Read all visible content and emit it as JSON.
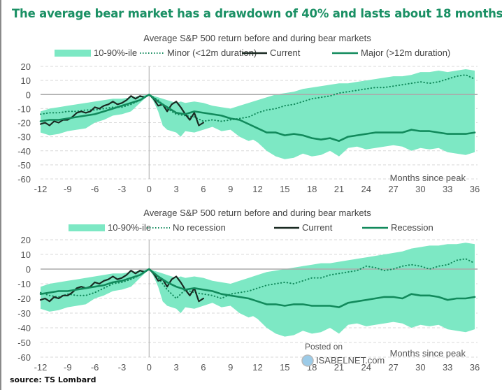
{
  "title": "The average bear market has a drawdown of 40% and lasts about 18 months",
  "source": "source: TS Lombard",
  "watermark": {
    "line1": "Posted on",
    "line2": "ISABELNET.com"
  },
  "colors": {
    "band": "#7de8c4",
    "dark": "#1a2a22",
    "green": "#128a5c",
    "title": "#1a9064",
    "grid": "#d9d9d9",
    "zero": "#aaaaaa"
  },
  "chart_data": [
    {
      "type": "line",
      "title": "Average S&P 500 return before and during bear markets",
      "xlabel": "Months since peak",
      "ylabel": "",
      "xlim": [
        -12,
        36
      ],
      "ylim": [
        -60,
        20
      ],
      "xticks": [
        -12,
        -9,
        -6,
        -3,
        0,
        3,
        6,
        9,
        12,
        15,
        18,
        21,
        24,
        27,
        30,
        33,
        36
      ],
      "yticks": [
        20,
        10,
        0,
        -10,
        -20,
        -30,
        -40,
        -50,
        -60
      ],
      "grid": true,
      "legend": [
        {
          "label": "10-90%-ile",
          "kind": "band"
        },
        {
          "label": "Minor (<12m duration)",
          "kind": "dotted"
        },
        {
          "label": "Current",
          "kind": "dark"
        },
        {
          "label": "Major (>12m duration)",
          "kind": "green"
        }
      ],
      "legend_placement": "top",
      "band": {
        "x": [
          -12,
          -11,
          -10,
          -9,
          -8,
          -7,
          -6,
          -5,
          -4,
          -3,
          -2,
          -1,
          0,
          0.5,
          1,
          1.5,
          2,
          3,
          3.5,
          4,
          5,
          6,
          7,
          8,
          9,
          10,
          11,
          11.5,
          12,
          13,
          14,
          15,
          16,
          17,
          18,
          19,
          20,
          21,
          22,
          23,
          24,
          25,
          26,
          27,
          28,
          29,
          30,
          31,
          32,
          33,
          34,
          35,
          36
        ],
        "upper": [
          -12,
          -10,
          -9,
          -8,
          -7,
          -6,
          -5,
          -4,
          -3,
          -3,
          -2,
          -1,
          0,
          -1,
          -2,
          -3,
          -4,
          -6,
          -5,
          -6,
          -5,
          -6,
          -8,
          -9,
          -10,
          -8,
          -6,
          -5,
          -4,
          -2,
          0,
          1,
          2,
          4,
          5,
          6,
          7,
          8,
          8,
          9,
          10,
          11,
          12,
          13,
          13,
          14,
          16,
          16,
          17,
          16,
          17,
          18,
          17
        ],
        "lower": [
          -27,
          -29,
          -28,
          -26,
          -25,
          -24,
          -20,
          -18,
          -15,
          -14,
          -12,
          -6,
          0,
          -5,
          -12,
          -22,
          -25,
          -27,
          -30,
          -26,
          -27,
          -25,
          -23,
          -26,
          -25,
          -30,
          -33,
          -32,
          -34,
          -40,
          -44,
          -46,
          -45,
          -42,
          -44,
          -43,
          -40,
          -44,
          -38,
          -37,
          -39,
          -38,
          -37,
          -36,
          -37,
          -40,
          -38,
          -39,
          -38,
          -41,
          -42,
          -43,
          -41
        ]
      },
      "series": [
        {
          "name": "Minor (<12m duration)",
          "style": "dotted",
          "x": [
            -12,
            -11,
            -10,
            -9,
            -8,
            -7,
            -6,
            -5,
            -4,
            -3,
            -2,
            -1,
            0,
            1,
            2,
            3,
            4,
            5,
            6,
            7,
            8,
            9,
            10,
            11,
            12,
            13,
            14,
            15,
            16,
            17,
            18,
            19,
            20,
            21,
            22,
            23,
            24,
            25,
            26,
            27,
            28,
            29,
            30,
            31,
            32,
            33,
            34,
            35,
            36
          ],
          "y": [
            -14,
            -13,
            -13,
            -12,
            -12,
            -11,
            -11,
            -10,
            -9,
            -9,
            -7,
            -4,
            0,
            -4,
            -10,
            -14,
            -15,
            -16,
            -19,
            -18,
            -19,
            -18,
            -17,
            -16,
            -13,
            -11,
            -10,
            -8,
            -7,
            -5,
            -3,
            -2,
            -1,
            1,
            2,
            3,
            4,
            5,
            5,
            6,
            7,
            8,
            9,
            8,
            9,
            11,
            13,
            14,
            11
          ]
        },
        {
          "name": "Current",
          "style": "dark",
          "x": [
            -12,
            -11.5,
            -11,
            -10.5,
            -10,
            -9.5,
            -9,
            -8.5,
            -8,
            -7.5,
            -7,
            -6.5,
            -6,
            -5.5,
            -5,
            -4.5,
            -4,
            -3.5,
            -3,
            -2.5,
            -2,
            -1.5,
            -1,
            -0.5,
            0,
            0.5,
            1,
            1.5,
            2,
            2.5,
            3,
            3.5,
            4,
            4.5,
            5,
            5.5,
            6
          ],
          "y": [
            -21,
            -20,
            -22,
            -19,
            -20,
            -18,
            -18,
            -16,
            -13,
            -12,
            -13,
            -12,
            -9,
            -10,
            -8,
            -7,
            -5,
            -7,
            -6,
            -4,
            -1,
            -3,
            -1,
            -2,
            0,
            -3,
            -8,
            -7,
            -12,
            -7,
            -5,
            -9,
            -14,
            -18,
            -13,
            -22,
            -20
          ]
        },
        {
          "name": "Major (>12m duration)",
          "style": "green",
          "x": [
            -12,
            -11,
            -10,
            -9,
            -8,
            -7,
            -6,
            -5,
            -4,
            -3,
            -2,
            -1,
            0,
            1,
            2,
            3,
            4,
            5,
            6,
            7,
            8,
            9,
            10,
            11,
            12,
            13,
            14,
            15,
            16,
            17,
            18,
            19,
            20,
            21,
            22,
            23,
            24,
            25,
            26,
            27,
            28,
            29,
            30,
            31,
            32,
            33,
            34,
            35,
            36
          ],
          "y": [
            -19,
            -18,
            -18,
            -17,
            -16,
            -15,
            -14,
            -12,
            -10,
            -8,
            -6,
            -4,
            0,
            -5,
            -9,
            -13,
            -14,
            -12,
            -13,
            -14,
            -15,
            -17,
            -18,
            -21,
            -24,
            -27,
            -27,
            -29,
            -28,
            -29,
            -31,
            -32,
            -31,
            -33,
            -30,
            -29,
            -28,
            -27,
            -27,
            -27,
            -27,
            -25,
            -26,
            -26,
            -27,
            -28,
            -28,
            -28,
            -27
          ]
        }
      ]
    },
    {
      "type": "line",
      "title": "Average S&P 500 return before and during bear markets",
      "xlabel": "Months since peak",
      "ylabel": "",
      "xlim": [
        -12,
        36
      ],
      "ylim": [
        -60,
        20
      ],
      "xticks": [
        -12,
        -9,
        -6,
        -3,
        0,
        3,
        6,
        9,
        12,
        15,
        18,
        21,
        24,
        27,
        30,
        33,
        36
      ],
      "yticks": [
        20,
        10,
        0,
        -10,
        -20,
        -30,
        -40,
        -50,
        -60
      ],
      "grid": true,
      "legend": [
        {
          "label": "10-90%-ile",
          "kind": "band"
        },
        {
          "label": "No recession",
          "kind": "dotted"
        },
        {
          "label": "Current",
          "kind": "dark"
        },
        {
          "label": "Recession",
          "kind": "green"
        }
      ],
      "legend_placement": "top",
      "band": {
        "x": [
          -12,
          -11,
          -10,
          -9,
          -8,
          -7,
          -6,
          -5,
          -4,
          -3,
          -2,
          -1,
          0,
          0.5,
          1,
          1.5,
          2,
          3,
          3.5,
          4,
          5,
          6,
          7,
          8,
          9,
          10,
          11,
          11.5,
          12,
          13,
          14,
          15,
          16,
          17,
          18,
          19,
          20,
          21,
          22,
          23,
          24,
          25,
          26,
          27,
          28,
          29,
          30,
          31,
          32,
          33,
          34,
          35,
          36
        ],
        "upper": [
          -12,
          -10,
          -9,
          -8,
          -7,
          -6,
          -5,
          -4,
          -3,
          -3,
          -2,
          -1,
          0,
          -1,
          -2,
          -3,
          -4,
          -6,
          -5,
          -6,
          -5,
          -6,
          -8,
          -9,
          -10,
          -8,
          -6,
          -5,
          -4,
          -2,
          -1,
          0,
          1,
          2,
          3,
          4,
          4,
          5,
          6,
          7,
          8,
          9,
          10,
          11,
          12,
          14,
          15,
          16,
          16,
          17,
          17,
          18,
          17
        ],
        "lower": [
          -27,
          -29,
          -28,
          -26,
          -25,
          -24,
          -20,
          -18,
          -15,
          -14,
          -12,
          -6,
          0,
          -5,
          -12,
          -22,
          -25,
          -27,
          -30,
          -26,
          -27,
          -25,
          -23,
          -26,
          -25,
          -30,
          -33,
          -32,
          -34,
          -40,
          -44,
          -46,
          -45,
          -42,
          -44,
          -43,
          -40,
          -44,
          -38,
          -37,
          -39,
          -38,
          -37,
          -36,
          -37,
          -40,
          -38,
          -39,
          -38,
          -41,
          -42,
          -43,
          -41
        ]
      },
      "series": [
        {
          "name": "No recession",
          "style": "dotted",
          "x": [
            -12,
            -11,
            -10,
            -9,
            -8,
            -7,
            -6,
            -5,
            -4,
            -3,
            -2,
            -1,
            0,
            1,
            2,
            3,
            4,
            5,
            6,
            7,
            8,
            9,
            10,
            11,
            12,
            13,
            14,
            15,
            16,
            17,
            18,
            19,
            20,
            21,
            22,
            23,
            24,
            25,
            26,
            27,
            28,
            29,
            30,
            31,
            32,
            33,
            34,
            35,
            36
          ],
          "y": [
            -16,
            -18,
            -19,
            -17,
            -18,
            -18,
            -16,
            -13,
            -10,
            -9,
            -7,
            -4,
            0,
            -6,
            -14,
            -20,
            -14,
            -16,
            -17,
            -18,
            -20,
            -17,
            -16,
            -15,
            -13,
            -11,
            -10,
            -9,
            -10,
            -8,
            -6,
            -6,
            -4,
            -3,
            -2,
            -1,
            2,
            1,
            -1,
            0,
            2,
            3,
            2,
            0,
            2,
            3,
            6,
            7,
            4
          ]
        },
        {
          "name": "Current",
          "style": "dark",
          "x": [
            -12,
            -11.5,
            -11,
            -10.5,
            -10,
            -9.5,
            -9,
            -8.5,
            -8,
            -7.5,
            -7,
            -6.5,
            -6,
            -5.5,
            -5,
            -4.5,
            -4,
            -3.5,
            -3,
            -2.5,
            -2,
            -1.5,
            -1,
            -0.5,
            0,
            0.5,
            1,
            1.5,
            2,
            2.5,
            3,
            3.5,
            4,
            4.5,
            5,
            5.5,
            6
          ],
          "y": [
            -21,
            -20,
            -22,
            -19,
            -20,
            -18,
            -18,
            -16,
            -13,
            -12,
            -13,
            -12,
            -9,
            -10,
            -8,
            -7,
            -5,
            -7,
            -6,
            -4,
            -1,
            -3,
            -1,
            -2,
            0,
            -3,
            -8,
            -7,
            -12,
            -7,
            -5,
            -9,
            -14,
            -18,
            -13,
            -22,
            -20
          ]
        },
        {
          "name": "Recession",
          "style": "green",
          "x": [
            -12,
            -11,
            -10,
            -9,
            -8,
            -7,
            -6,
            -5,
            -4,
            -3,
            -2,
            -1,
            0,
            1,
            2,
            3,
            4,
            5,
            6,
            7,
            8,
            9,
            10,
            11,
            12,
            13,
            14,
            15,
            16,
            17,
            18,
            19,
            20,
            21,
            22,
            23,
            24,
            25,
            26,
            27,
            28,
            29,
            30,
            31,
            32,
            33,
            34,
            35,
            36
          ],
          "y": [
            -17,
            -16,
            -15,
            -15,
            -14,
            -13,
            -12,
            -11,
            -9,
            -8,
            -6,
            -4,
            0,
            -5,
            -9,
            -12,
            -14,
            -13,
            -14,
            -15,
            -17,
            -18,
            -19,
            -20,
            -22,
            -24,
            -24,
            -25,
            -24,
            -24,
            -25,
            -25,
            -25,
            -26,
            -23,
            -22,
            -21,
            -20,
            -19,
            -19,
            -20,
            -17,
            -18,
            -18,
            -19,
            -21,
            -20,
            -20,
            -19
          ]
        }
      ]
    }
  ]
}
